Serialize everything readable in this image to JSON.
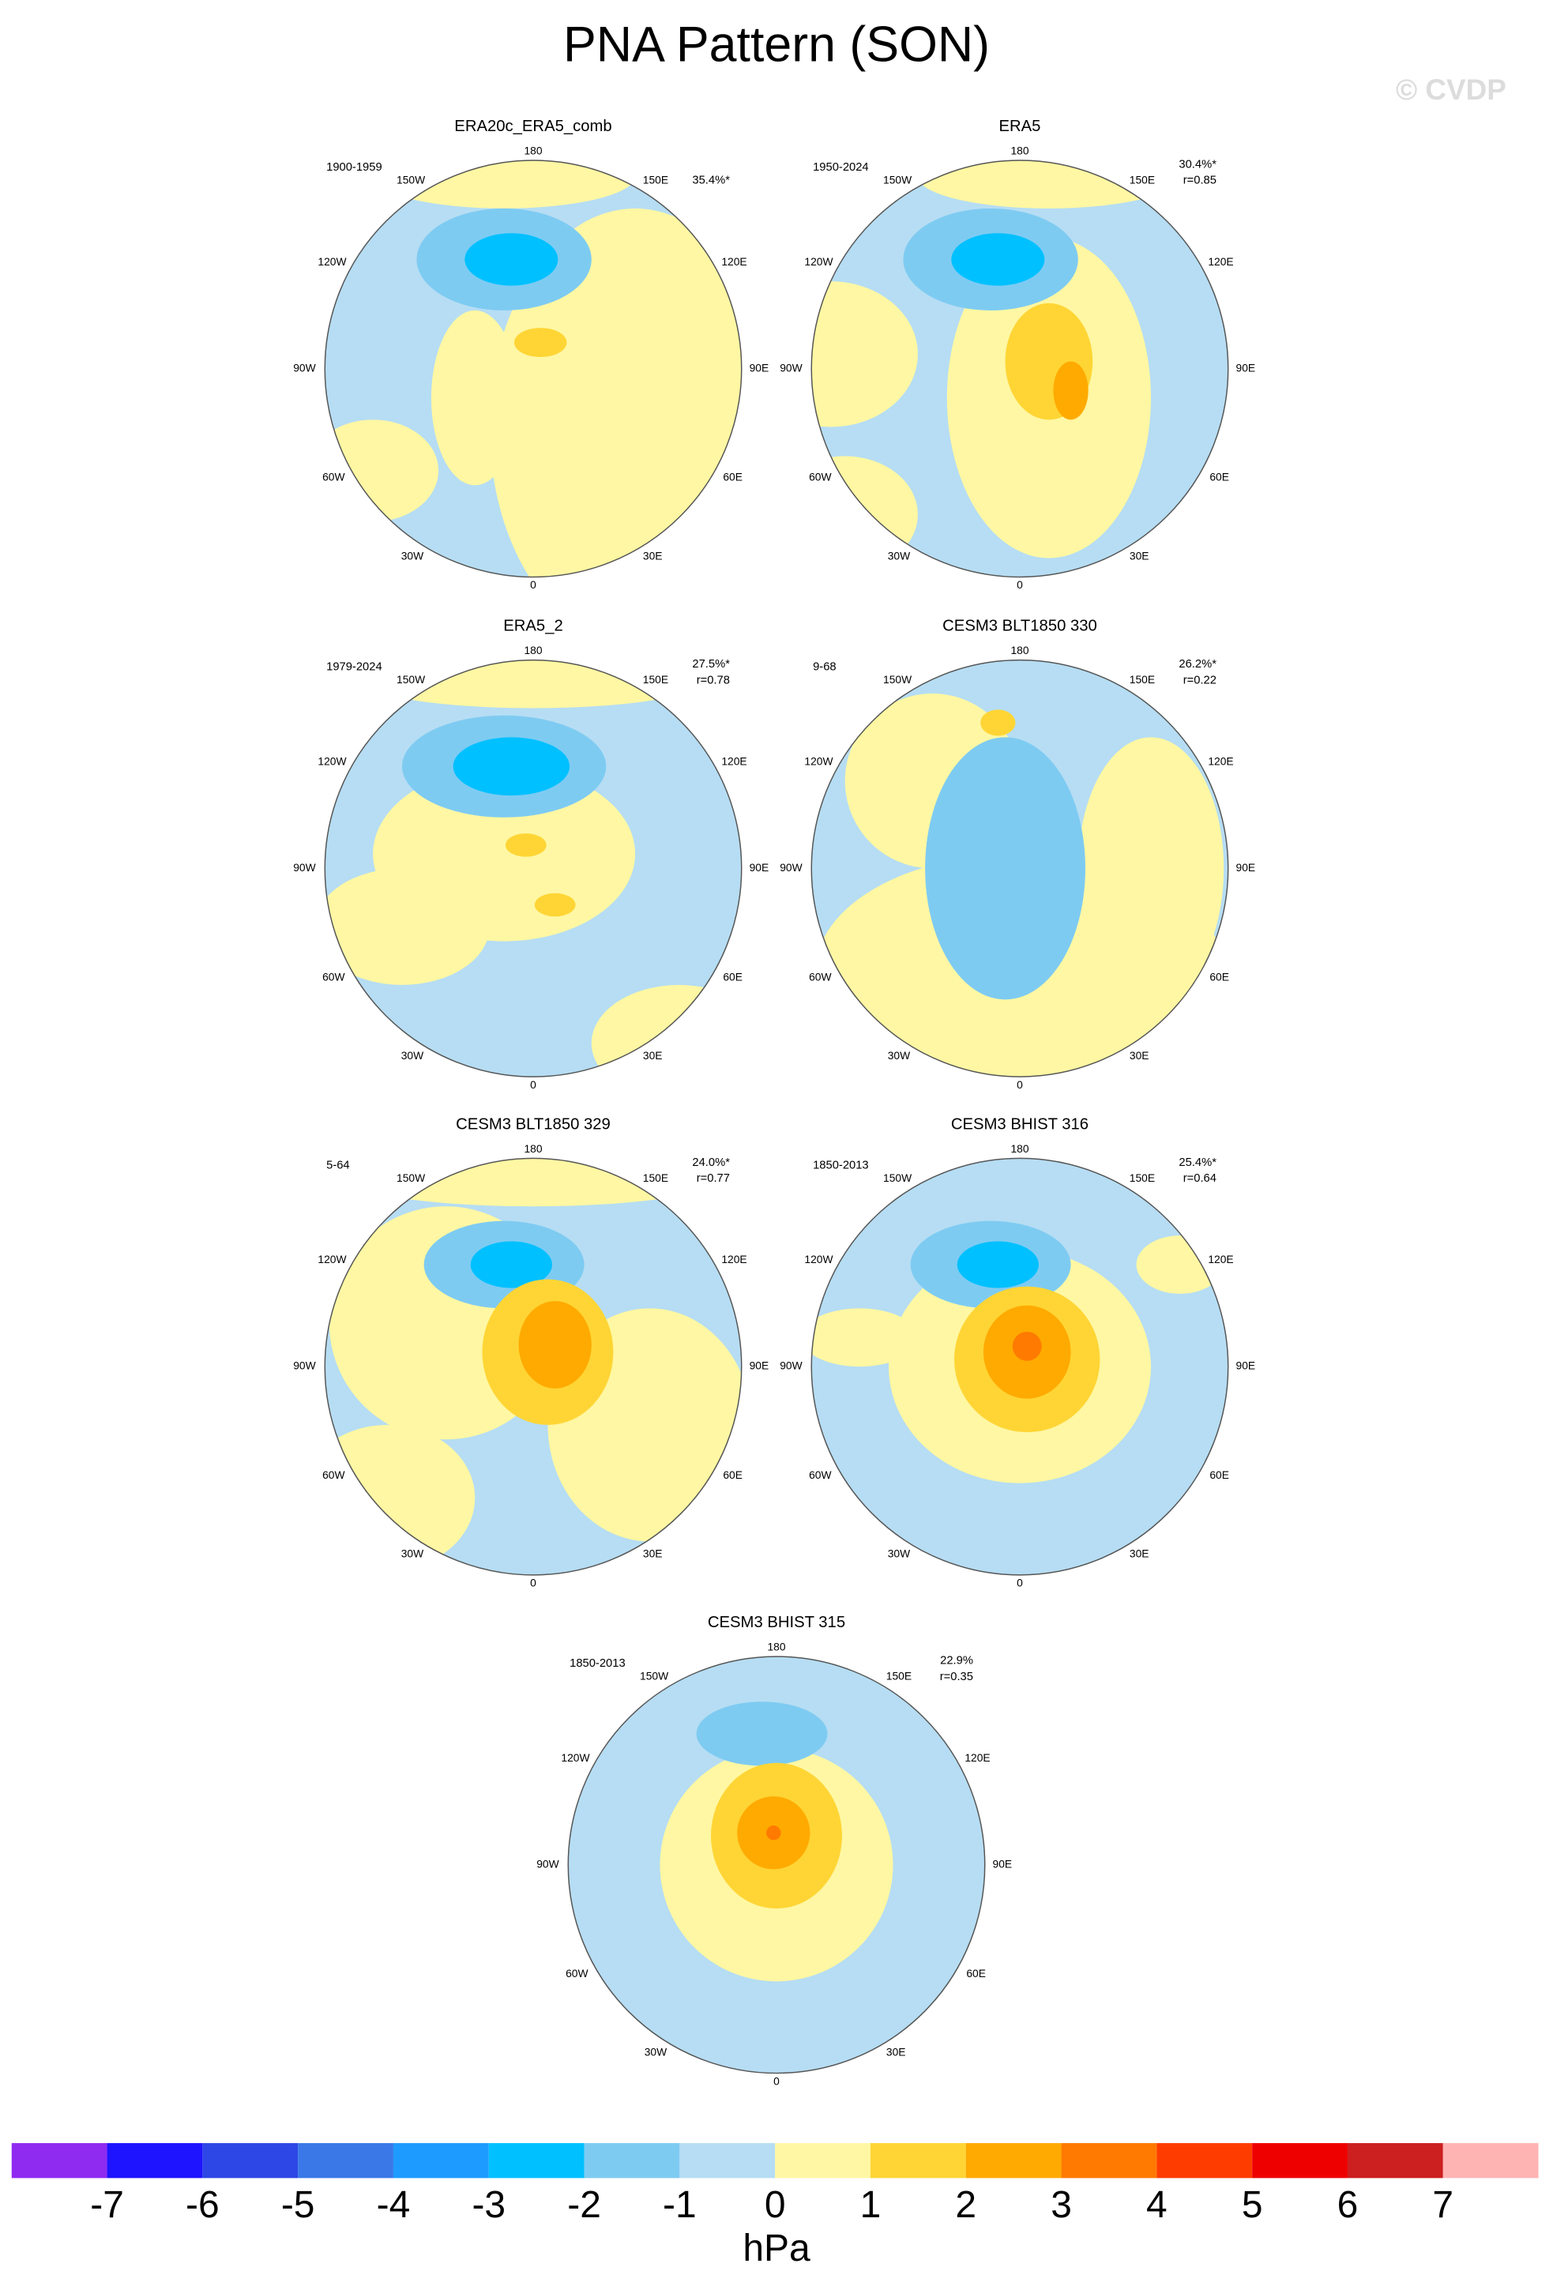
{
  "figure": {
    "title": "PNA Pattern (SON)",
    "watermark": "© CVDP"
  },
  "lon_labels": [
    "180",
    "150E",
    "120E",
    "90E",
    "60E",
    "30E",
    "0",
    "30W",
    "60W",
    "90W",
    "120W",
    "150W"
  ],
  "panels": [
    {
      "title": "ERA20c_ERA5_comb",
      "period": "1900-1959",
      "variance": "35.4%*"
    },
    {
      "title": "ERA5",
      "period": "1950-2024",
      "variance": "30.4%*",
      "corr": "r=0.85"
    },
    {
      "title": "ERA5_2",
      "period": "1979-2024",
      "variance": "27.5%*",
      "corr": "r=0.78"
    },
    {
      "title": "CESM3 BLT1850 330",
      "period": "9-68",
      "variance": "26.2%*",
      "corr": "r=0.22"
    },
    {
      "title": "CESM3 BLT1850 329",
      "period": "5-64",
      "variance": "24.0%*",
      "corr": "r=0.77"
    },
    {
      "title": "CESM3 BHIST 316",
      "period": "1850-2013",
      "variance": "25.4%*",
      "corr": "r=0.64"
    },
    {
      "title": "CESM3 BHIST 315",
      "period": "1850-2013",
      "variance": "22.9%",
      "corr": "r=0.35"
    }
  ],
  "colorbar": {
    "colors": [
      "#8f2bf0",
      "#1e14ff",
      "#2d47e6",
      "#3a78e8",
      "#1e9bff",
      "#00c0ff",
      "#7ecbf2",
      "#b6ddf3",
      "#fff7a3",
      "#ffd535",
      "#ffaa00",
      "#ff7a00",
      "#ff3c00",
      "#ee0000",
      "#cc1f1f",
      "#ffb4b4"
    ],
    "ticks": [
      -7,
      -6,
      -5,
      -4,
      -3,
      -2,
      -1,
      0,
      1,
      2,
      3,
      4,
      5,
      6,
      7
    ],
    "unit": "hPa"
  }
}
